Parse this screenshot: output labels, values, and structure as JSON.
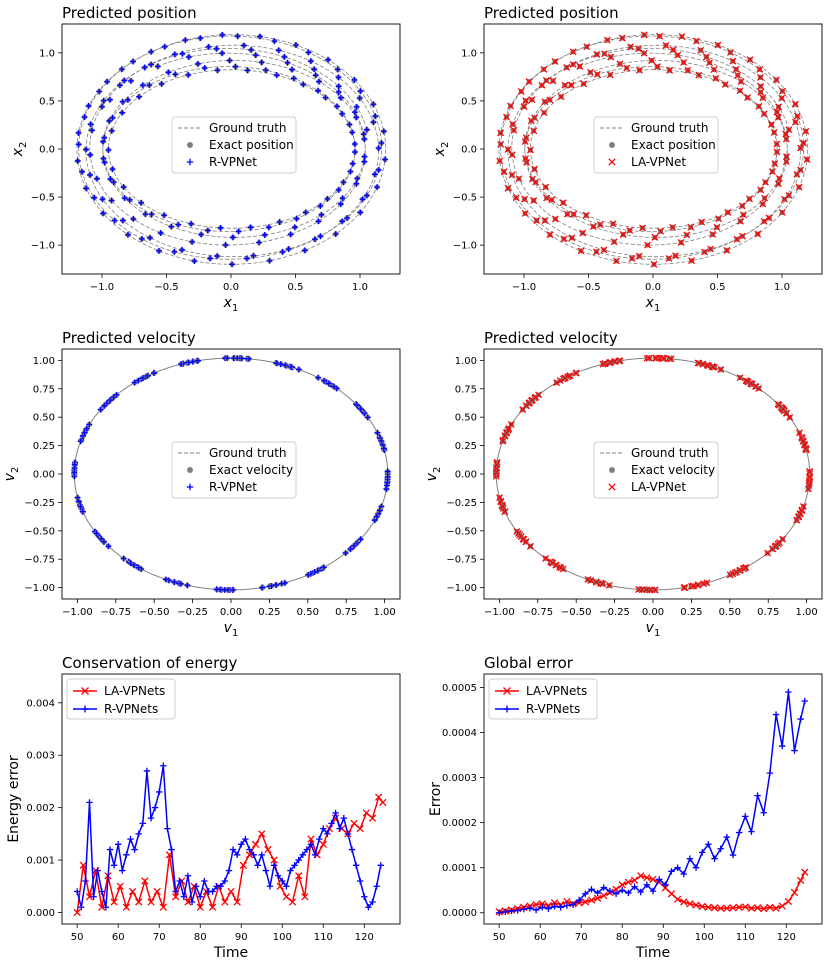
{
  "colors": {
    "blue": "#0000ff",
    "red": "#ff0000",
    "truth": "#808080",
    "exact": "#808080"
  },
  "chart_data": [
    {
      "type": "scatter",
      "kind": "position",
      "title": "Predicted position",
      "xlabel": "x",
      "xlabel_sub": "1",
      "ylabel": "x",
      "ylabel_sub": "2",
      "xlim": [
        -1.31,
        1.31
      ],
      "ylim": [
        -1.3,
        1.3
      ],
      "xticks": [
        -1.0,
        -0.5,
        0.0,
        0.5,
        1.0
      ],
      "xtick_labels": [
        "−1.0",
        "−0.5",
        "0.0",
        "0.5",
        "1.0"
      ],
      "yticks": [
        -1.0,
        -0.5,
        0.0,
        0.5,
        1.0
      ],
      "ytick_labels": [
        "−1.0",
        "−0.5",
        "0.0",
        "0.5",
        "1.0"
      ],
      "legend": [
        "Ground truth",
        "Exact position",
        "R-VPNet"
      ],
      "legend_position": "center",
      "marker": "plus",
      "color": "blue",
      "orbit": {
        "radius_x_min": 0.95,
        "radius_x_max": 1.2,
        "radius_y_min": 0.82,
        "radius_y_max": 1.2,
        "samples": 190
      }
    },
    {
      "type": "scatter",
      "kind": "position",
      "title": "Predicted position",
      "xlabel": "x",
      "xlabel_sub": "1",
      "ylabel": "x",
      "ylabel_sub": "2",
      "xlim": [
        -1.31,
        1.31
      ],
      "ylim": [
        -1.3,
        1.3
      ],
      "xticks": [
        -1.0,
        -0.5,
        0.0,
        0.5,
        1.0
      ],
      "xtick_labels": [
        "−1.0",
        "−0.5",
        "0.0",
        "0.5",
        "1.0"
      ],
      "yticks": [
        -1.0,
        -0.5,
        0.0,
        0.5,
        1.0
      ],
      "ytick_labels": [
        "−1.0",
        "−0.5",
        "0.0",
        "0.5",
        "1.0"
      ],
      "legend": [
        "Ground truth",
        "Exact position",
        "LA-VPNet"
      ],
      "legend_position": "center",
      "marker": "x",
      "color": "red",
      "orbit": {
        "radius_x_min": 0.95,
        "radius_x_max": 1.2,
        "radius_y_min": 0.82,
        "radius_y_max": 1.2,
        "samples": 190
      }
    },
    {
      "type": "scatter",
      "kind": "velocity",
      "title": "Predicted velocity",
      "xlabel": "v",
      "xlabel_sub": "1",
      "ylabel": "v",
      "ylabel_sub": "2",
      "xlim": [
        -1.1,
        1.1
      ],
      "ylim": [
        -1.1,
        1.1
      ],
      "xticks": [
        -1.0,
        -0.75,
        -0.5,
        -0.25,
        0.0,
        0.25,
        0.5,
        0.75,
        1.0
      ],
      "xtick_labels": [
        "−1.00",
        "−0.75",
        "−0.50",
        "−0.25",
        "0.00",
        "0.25",
        "0.50",
        "0.75",
        "1.00"
      ],
      "yticks": [
        -1.0,
        -0.75,
        -0.5,
        -0.25,
        0.0,
        0.25,
        0.5,
        0.75,
        1.0
      ],
      "ytick_labels": [
        "−1.00",
        "−0.75",
        "−0.50",
        "−0.25",
        "0.00",
        "0.25",
        "0.50",
        "0.75",
        "1.00"
      ],
      "legend": [
        "Ground truth",
        "Exact velocity",
        "R-VPNet"
      ],
      "legend_position": "center",
      "marker": "plus",
      "color": "blue",
      "orbit": {
        "radius_x": 1.02,
        "radius_y": 1.02,
        "samples": 190
      }
    },
    {
      "type": "scatter",
      "kind": "velocity",
      "title": "Predicted velocity",
      "xlabel": "v",
      "xlabel_sub": "1",
      "ylabel": "v",
      "ylabel_sub": "2",
      "xlim": [
        -1.1,
        1.1
      ],
      "ylim": [
        -1.1,
        1.1
      ],
      "xticks": [
        -1.0,
        -0.75,
        -0.5,
        -0.25,
        0.0,
        0.25,
        0.5,
        0.75,
        1.0
      ],
      "xtick_labels": [
        "−1.00",
        "−0.75",
        "−0.50",
        "−0.25",
        "0.00",
        "0.25",
        "0.50",
        "0.75",
        "1.00"
      ],
      "yticks": [
        -1.0,
        -0.75,
        -0.5,
        -0.25,
        0.0,
        0.25,
        0.5,
        0.75,
        1.0
      ],
      "ytick_labels": [
        "−1.00",
        "−0.75",
        "−0.50",
        "−0.25",
        "0.00",
        "0.25",
        "0.50",
        "0.75",
        "1.00"
      ],
      "legend": [
        "Ground truth",
        "Exact velocity",
        "LA-VPNet"
      ],
      "legend_position": "center",
      "marker": "x",
      "color": "red",
      "orbit": {
        "radius_x": 1.02,
        "radius_y": 1.02,
        "samples": 190
      }
    },
    {
      "type": "line",
      "kind": "series",
      "title": "Conservation of energy",
      "xlabel": "Time",
      "ylabel": "Energy error",
      "xlim": [
        46.3,
        128.7
      ],
      "ylim": [
        -0.00022,
        0.00455
      ],
      "xticks": [
        50,
        60,
        70,
        80,
        90,
        100,
        110,
        120
      ],
      "xtick_labels": [
        "50",
        "60",
        "70",
        "80",
        "90",
        "100",
        "110",
        "120"
      ],
      "yticks": [
        0,
        0.001,
        0.002,
        0.003,
        0.004
      ],
      "ytick_labels": [
        "0.000",
        "0.001",
        "0.002",
        "0.003",
        "0.004"
      ],
      "legend_position": "upper left",
      "series": [
        {
          "name": "LA-VPNets",
          "color": "red",
          "marker": "x",
          "x": [
            50,
            51.5,
            53,
            54.5,
            56,
            57.5,
            59,
            60.5,
            62,
            63.5,
            65,
            66.5,
            68,
            69.5,
            71,
            72.5,
            74,
            75.5,
            77,
            78.5,
            80,
            81.5,
            83,
            84.5,
            86,
            87.5,
            89,
            90.5,
            92,
            93.5,
            95,
            96.5,
            98,
            99.5,
            101,
            102.5,
            104,
            105.5,
            107,
            108.5,
            110,
            111.5,
            113,
            114.5,
            116,
            117.5,
            119,
            120.5,
            122,
            123.5,
            124.5
          ],
          "values": [
            0.0,
            0.0009,
            0.0003,
            0.0008,
            0.0001,
            0.0007,
            0.0002,
            0.0005,
            0.0001,
            0.0004,
            0.0002,
            0.0006,
            0.0002,
            0.0004,
            0.0001,
            0.0011,
            0.0003,
            0.0006,
            0.0002,
            0.0005,
            0.0001,
            0.0004,
            0.0001,
            0.0005,
            0.0002,
            0.0004,
            0.0002,
            0.0009,
            0.0011,
            0.0013,
            0.0015,
            0.0012,
            0.001,
            0.0005,
            0.0003,
            0.0002,
            0.0007,
            0.0003,
            0.0014,
            0.0011,
            0.0013,
            0.0016,
            0.0018,
            0.0016,
            0.0015,
            0.0017,
            0.0016,
            0.0019,
            0.0018,
            0.0022,
            0.0021
          ]
        },
        {
          "name": "R-VPNets",
          "color": "blue",
          "marker": "plus",
          "x": [
            50,
            51,
            52,
            53,
            54,
            55,
            56,
            57,
            58,
            59,
            60,
            61,
            62,
            63,
            64,
            65,
            66,
            67,
            68,
            69,
            70,
            71,
            72,
            73,
            74,
            75,
            76,
            77,
            78,
            79,
            80,
            81,
            82,
            83,
            84,
            85,
            86,
            87,
            88,
            89,
            90,
            91,
            92,
            93,
            94,
            95,
            96,
            97,
            98,
            99,
            100,
            101,
            102,
            103,
            104,
            105,
            106,
            107,
            108,
            109,
            110,
            111,
            112,
            113,
            114,
            115,
            116,
            117,
            118,
            119,
            120,
            121,
            122,
            123,
            124
          ],
          "values": [
            0.0004,
            0.0001,
            0.0006,
            0.0021,
            0.0003,
            0.0008,
            0.0004,
            0.0001,
            0.0012,
            0.0009,
            0.0013,
            0.0008,
            0.0011,
            0.0014,
            0.0012,
            0.0015,
            0.0017,
            0.0027,
            0.0018,
            0.002,
            0.0023,
            0.0028,
            0.0016,
            0.0012,
            0.0004,
            0.0006,
            0.0003,
            0.0007,
            0.0002,
            0.0005,
            0.0003,
            0.0006,
            0.0004,
            0.0004,
            0.0005,
            0.0005,
            0.0006,
            0.0008,
            0.0012,
            0.0011,
            0.0013,
            0.0014,
            0.0012,
            0.0011,
            0.0009,
            0.0011,
            0.0008,
            0.0005,
            0.0009,
            0.0007,
            0.0006,
            0.0005,
            0.0008,
            0.0009,
            0.001,
            0.0011,
            0.0012,
            0.0013,
            0.0011,
            0.0014,
            0.0016,
            0.0015,
            0.0017,
            0.0019,
            0.0016,
            0.0018,
            0.0015,
            0.0012,
            0.0009,
            0.0006,
            0.0003,
            0.0001,
            0.0002,
            0.0005,
            0.0009
          ]
        }
      ]
    },
    {
      "type": "line",
      "kind": "series",
      "title": "Global error",
      "xlabel": "Time",
      "ylabel": "Error",
      "xlim": [
        46.3,
        128.7
      ],
      "ylim": [
        -2.5e-05,
        0.00053
      ],
      "xticks": [
        50,
        60,
        70,
        80,
        90,
        100,
        110,
        120
      ],
      "xtick_labels": [
        "50",
        "60",
        "70",
        "80",
        "90",
        "100",
        "110",
        "120"
      ],
      "yticks": [
        0,
        0.0001,
        0.0002,
        0.0003,
        0.0004,
        0.0005
      ],
      "ytick_labels": [
        "0.0000",
        "0.0001",
        "0.0002",
        "0.0003",
        "0.0004",
        "0.0005"
      ],
      "legend_position": "upper left",
      "series": [
        {
          "name": "LA-VPNets",
          "color": "red",
          "marker": "x",
          "x": [
            50,
            51.5,
            53,
            54.5,
            56,
            57.5,
            59,
            60.5,
            62,
            63.5,
            65,
            66.5,
            68,
            69.5,
            71,
            72.5,
            74,
            75.5,
            77,
            78.5,
            80,
            81.5,
            83,
            84.5,
            86,
            87.5,
            89,
            90.5,
            92,
            93.5,
            95,
            96.5,
            98,
            99.5,
            101,
            102.5,
            104,
            105.5,
            107,
            108.5,
            110,
            111.5,
            113,
            114.5,
            116,
            117.5,
            119,
            120.5,
            122,
            123.5,
            124.5
          ],
          "values": [
            2e-06,
            4e-06,
            6e-06,
            9e-06,
            1.2e-05,
            1.5e-05,
            1.8e-05,
            2e-05,
            1.6e-05,
            2.2e-05,
            1.8e-05,
            2.5e-05,
            2e-05,
            2.2e-05,
            2.4e-05,
            2.8e-05,
            3.2e-05,
            3.8e-05,
            4.5e-05,
            5.2e-05,
            6.2e-05,
            6.8e-05,
            7.2e-05,
            8.2e-05,
            7.8e-05,
            7.4e-05,
            6.8e-05,
            5.5e-05,
            4.2e-05,
            3e-05,
            2.4e-05,
            2e-05,
            1.7e-05,
            1.4e-05,
            1.2e-05,
            1.1e-05,
            1e-05,
            1e-05,
            1.1e-05,
            1.2e-05,
            1.3e-05,
            1e-05,
            1.1e-05,
            9e-06,
            1.2e-05,
            1e-05,
            1.5e-05,
            2.5e-05,
            4.5e-05,
            7.2e-05,
            9e-05
          ]
        },
        {
          "name": "R-VPNets",
          "color": "blue",
          "marker": "plus",
          "x": [
            50,
            51.5,
            53,
            54.5,
            56,
            57.5,
            59,
            60.5,
            62,
            63.5,
            65,
            66.5,
            68,
            69.5,
            71,
            72.5,
            74,
            75.5,
            77,
            78.5,
            80,
            81.5,
            83,
            84.5,
            86,
            87.5,
            89,
            90.5,
            92,
            93.5,
            95,
            96.5,
            98,
            99.5,
            101,
            102.5,
            104,
            105.5,
            107,
            108.5,
            110,
            111.5,
            113,
            114.5,
            116,
            117.5,
            119,
            120.5,
            122,
            123.5,
            124.5
          ],
          "values": [
            0.0,
            2e-06,
            4e-06,
            5e-06,
            8e-06,
            1e-05,
            6e-06,
            1.2e-05,
            9e-06,
            1.4e-05,
            1.2e-05,
            1.6e-05,
            1.8e-05,
            2.8e-05,
            4.2e-05,
            5.2e-05,
            4.4e-05,
            5.6e-05,
            4.8e-05,
            4.2e-05,
            5e-05,
            4.4e-05,
            5.8e-05,
            4.6e-05,
            6.2e-05,
            4.8e-05,
            7.4e-05,
            6.2e-05,
            9.2e-05,
            0.0001,
            8.6e-05,
            0.00012,
            0.0001,
            0.000134,
            0.000152,
            0.00012,
            0.000142,
            0.000168,
            0.000128,
            0.000178,
            0.000214,
            0.00018,
            0.00026,
            0.000222,
            0.00031,
            0.00044,
            0.00037,
            0.00049,
            0.00036,
            0.00043,
            0.00047
          ]
        }
      ]
    }
  ]
}
